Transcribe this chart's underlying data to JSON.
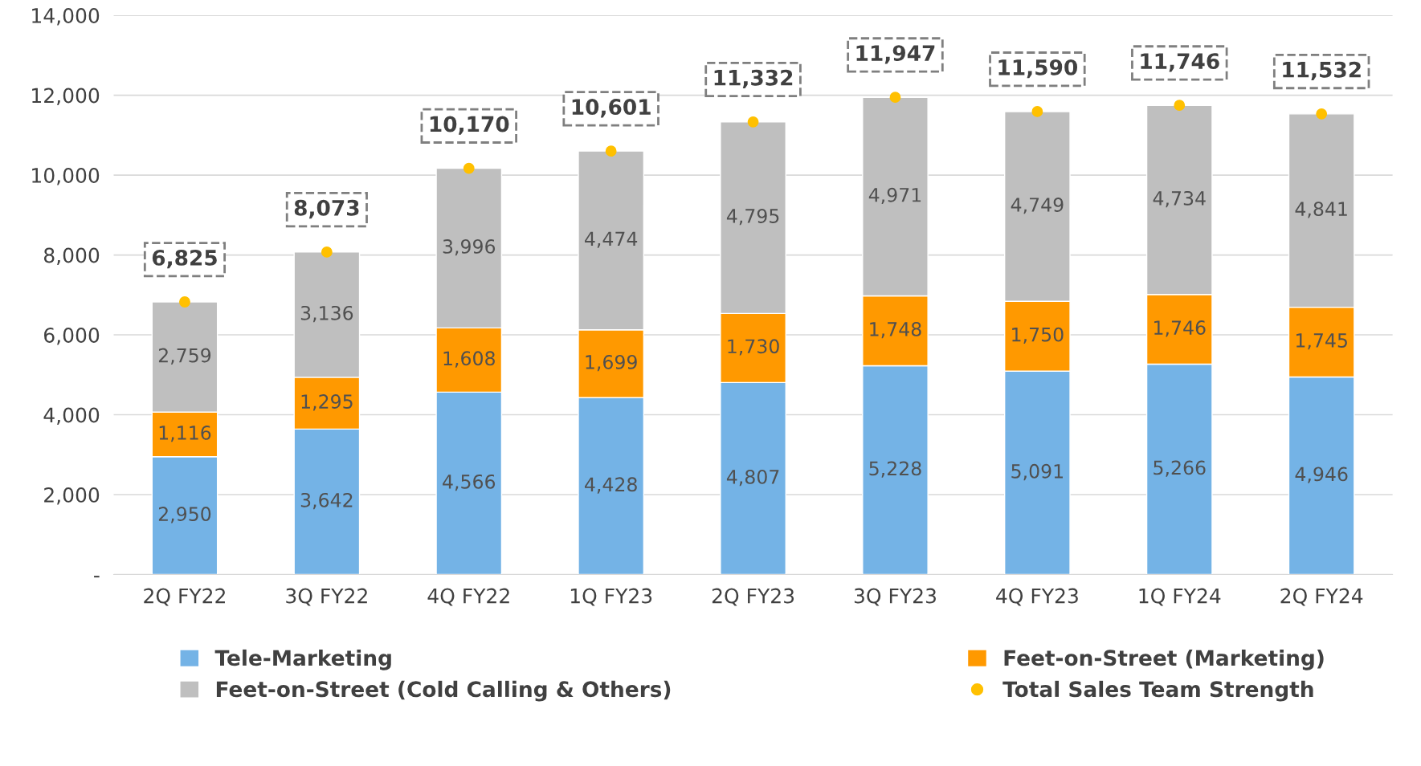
{
  "chart_data": {
    "type": "bar",
    "stacked": true,
    "categories": [
      "2Q FY22",
      "3Q FY22",
      "4Q FY22",
      "1Q FY23",
      "2Q FY23",
      "3Q FY23",
      "4Q FY23",
      "1Q FY24",
      "2Q FY24"
    ],
    "series": [
      {
        "name": "Tele-Marketing",
        "color": "#74b3e6",
        "values": [
          2950,
          3642,
          4566,
          4428,
          4807,
          5228,
          5091,
          5266,
          4946
        ],
        "value_labels": [
          "2,950",
          "3,642",
          "4,566",
          "4,428",
          "4,807",
          "5,228",
          "5,091",
          "5,266",
          "4,946"
        ]
      },
      {
        "name": "Feet-on-Street (Marketing)",
        "color": "#ff9900",
        "values": [
          1116,
          1295,
          1608,
          1699,
          1730,
          1748,
          1750,
          1746,
          1745
        ],
        "value_labels": [
          "1,116",
          "1,295",
          "1,608",
          "1,699",
          "1,730",
          "1,748",
          "1,750",
          "1,746",
          "1,745"
        ]
      },
      {
        "name": "Feet-on-Street (Cold Calling & Others)",
        "color": "#bfbfbf",
        "values": [
          2759,
          3136,
          3996,
          4474,
          4795,
          4971,
          4749,
          4734,
          4841
        ],
        "value_labels": [
          "2,759",
          "3,136",
          "3,996",
          "4,474",
          "4,795",
          "4,971",
          "4,749",
          "4,734",
          "4,841"
        ]
      },
      {
        "name": "Total Sales Team Strength",
        "type": "scatter",
        "marker": "circle",
        "color": "#ffc000",
        "values": [
          6825,
          8073,
          10170,
          10601,
          11332,
          11947,
          11590,
          11746,
          11532
        ],
        "value_labels": [
          "6,825",
          "8,073",
          "10,170",
          "10,601",
          "11,332",
          "11,947",
          "11,590",
          "11,746",
          "11,532"
        ]
      }
    ],
    "ylim": [
      0,
      14000
    ],
    "yticks": [
      {
        "value": 0,
        "label": "-"
      },
      {
        "value": 2000,
        "label": "2,000"
      },
      {
        "value": 4000,
        "label": "4,000"
      },
      {
        "value": 6000,
        "label": "6,000"
      },
      {
        "value": 8000,
        "label": "8,000"
      },
      {
        "value": 10000,
        "label": "10,000"
      },
      {
        "value": 12000,
        "label": "12,000"
      },
      {
        "value": 14000,
        "label": "14,000"
      }
    ],
    "grid": "y",
    "legend": "bottom"
  }
}
